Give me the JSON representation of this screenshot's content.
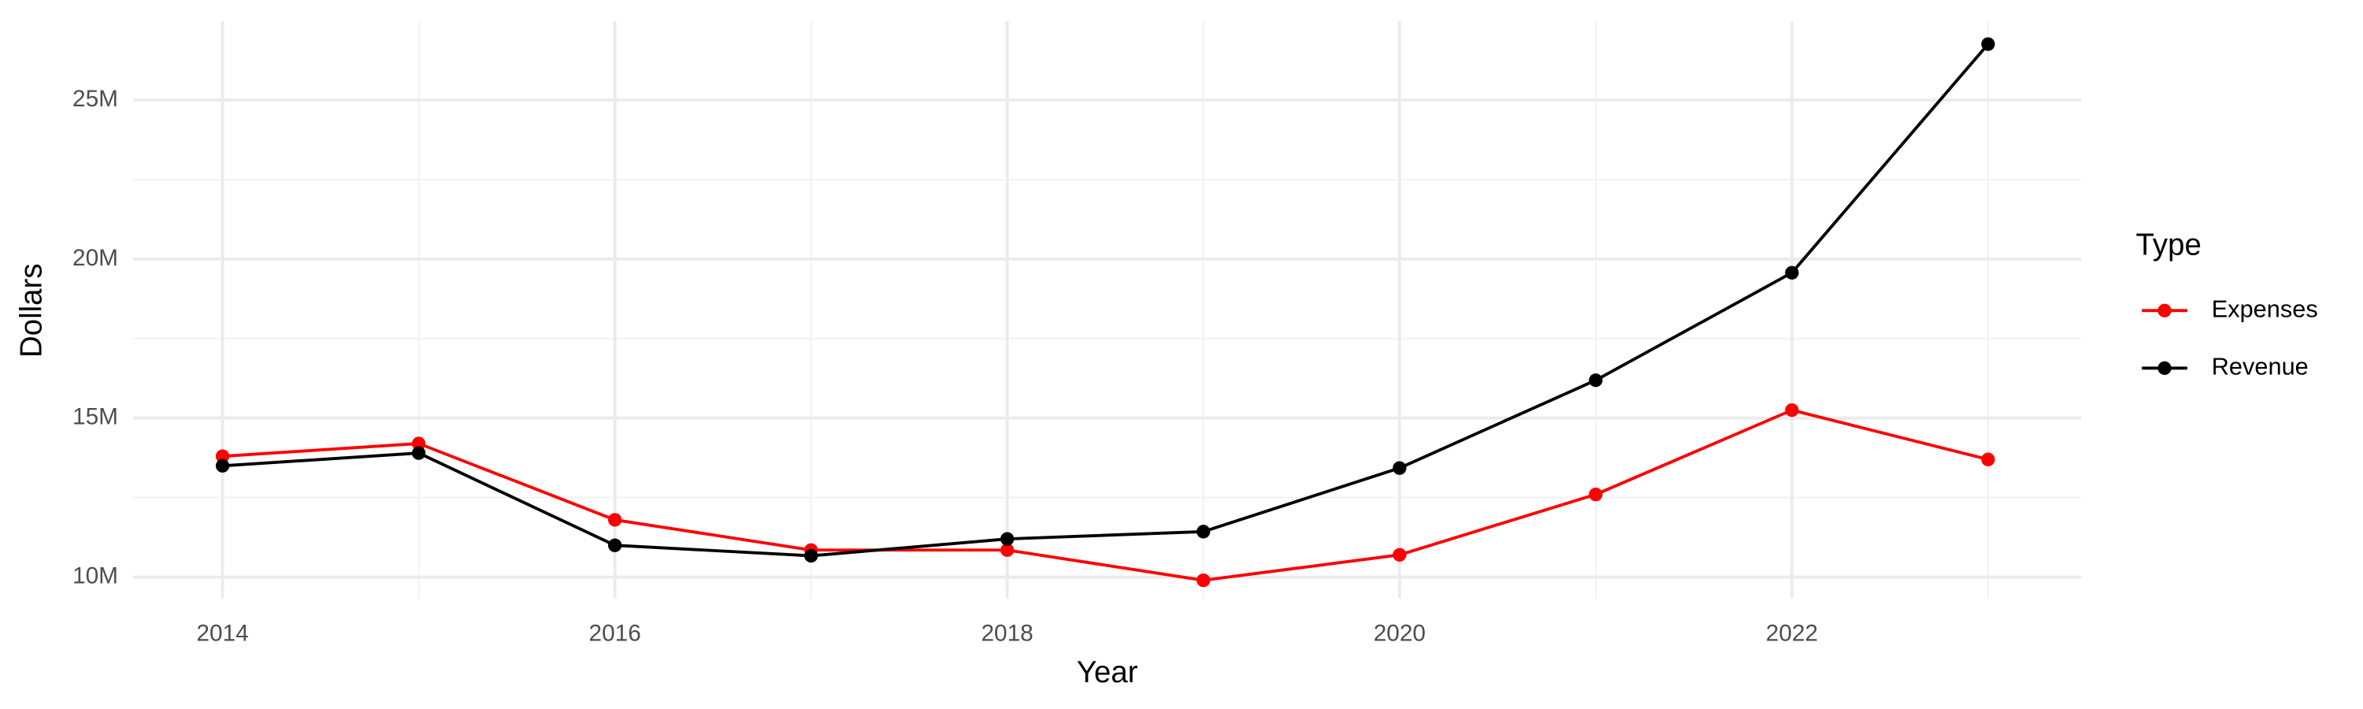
{
  "chart_data": {
    "type": "line",
    "x_label": "Year",
    "y_label": "Dollars",
    "legend_title": "Type",
    "legend_position": "right",
    "grid": true,
    "x": [
      2014,
      2015,
      2016,
      2017,
      2018,
      2019,
      2020,
      2021,
      2022,
      2023
    ],
    "series": [
      {
        "name": "Expenses",
        "color": "#ff0000",
        "values": [
          13800000,
          14200000,
          11800000,
          10850000,
          10850000,
          9900000,
          10700000,
          12600000,
          15250000,
          13700000
        ]
      },
      {
        "name": "Revenue",
        "color": "#000000",
        "values": [
          13500000,
          13900000,
          11000000,
          10670000,
          11200000,
          11430000,
          13430000,
          16190000,
          19570000,
          26760000
        ]
      }
    ],
    "xlim": [
      2013.545,
      2023.475
    ],
    "xticks": [
      2014,
      2016,
      2018,
      2020,
      2022
    ],
    "ylim": [
      9330000,
      27480000
    ],
    "yticks": [
      {
        "value": 10000000,
        "label": "10M"
      },
      {
        "value": 15000000,
        "label": "15M"
      },
      {
        "value": 20000000,
        "label": "20M"
      },
      {
        "value": 25000000,
        "label": "25M"
      }
    ]
  }
}
